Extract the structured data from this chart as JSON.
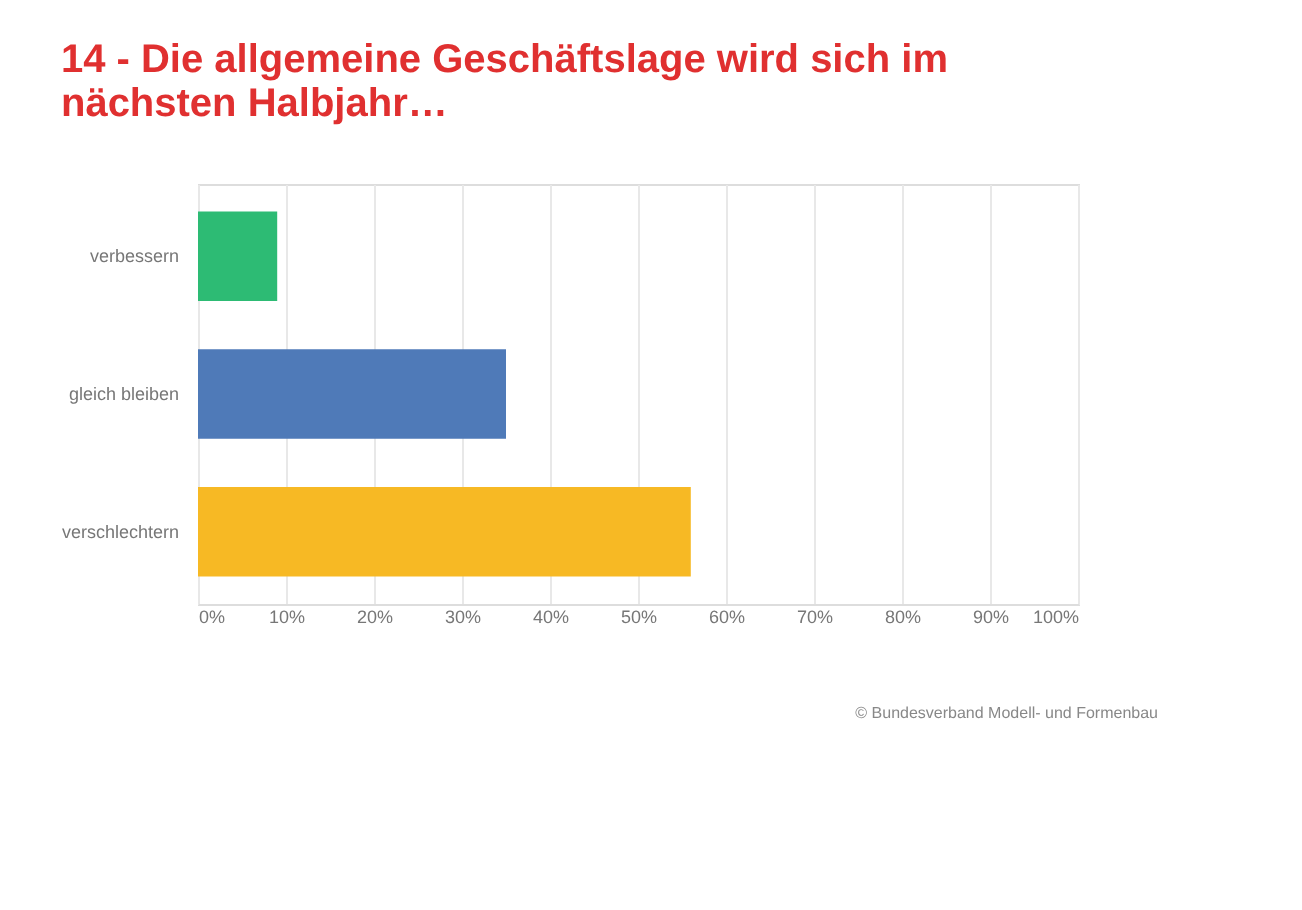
{
  "chart_data": {
    "type": "bar",
    "orientation": "horizontal",
    "title": "14 - Die allgemeine Geschäftslage wird sich im nächsten Halbjahr…",
    "categories": [
      "verbessern",
      "gleich bleiben",
      "verschlechtern"
    ],
    "values": [
      9,
      35,
      56
    ],
    "colors": [
      "#2dbb74",
      "#4f7ab8",
      "#f7b924"
    ],
    "xlim": [
      0,
      100
    ],
    "xticks": [
      {
        "value": 0,
        "label": "0%"
      },
      {
        "value": 10,
        "label": "10%"
      },
      {
        "value": 20,
        "label": "20%"
      },
      {
        "value": 30,
        "label": "30%"
      },
      {
        "value": 40,
        "label": "40%"
      },
      {
        "value": 50,
        "label": "50%"
      },
      {
        "value": 60,
        "label": "60%"
      },
      {
        "value": 70,
        "label": "70%"
      },
      {
        "value": 80,
        "label": "80%"
      },
      {
        "value": 90,
        "label": "90%"
      },
      {
        "value": 100,
        "label": "100%"
      }
    ],
    "grid": "x",
    "annotations": [
      "© Bundesverband Modell- und Formenbau"
    ]
  }
}
